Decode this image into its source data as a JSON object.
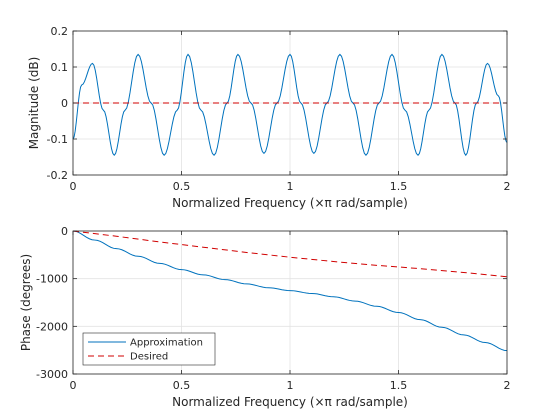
{
  "chart_data": [
    {
      "type": "line",
      "xlabel": "Normalized Frequency  (×π rad/sample)",
      "ylabel": "Magnitude (dB)",
      "xlim": [
        0,
        2
      ],
      "ylim": [
        -0.2,
        0.2
      ],
      "xticks": [
        "0",
        "0.5",
        "1",
        "1.5",
        "2"
      ],
      "yticks": [
        "0.2",
        "0.1",
        "0",
        "-0.1",
        "-0.2"
      ],
      "grid": true,
      "series": [
        {
          "color": "#0072BD",
          "style": "solid",
          "x": [
            0,
            0.04,
            0.09,
            0.14,
            0.19,
            0.24,
            0.3,
            0.36,
            0.42,
            0.48,
            0.53,
            0.59,
            0.65,
            0.71,
            0.76,
            0.82,
            0.88,
            0.94,
            1.0,
            1.05,
            1.11,
            1.17,
            1.23,
            1.29,
            1.35,
            1.41,
            1.47,
            1.53,
            1.59,
            1.64,
            1.7,
            1.76,
            1.81,
            1.86,
            1.91,
            1.96,
            2.0
          ],
          "y": [
            -0.1,
            0.05,
            0.11,
            -0.02,
            -0.145,
            -0.02,
            0.135,
            0.0,
            -0.145,
            -0.02,
            0.135,
            -0.02,
            -0.145,
            0.0,
            0.135,
            0.0,
            -0.14,
            0.0,
            0.135,
            0.0,
            -0.14,
            0.0,
            0.135,
            0.0,
            -0.145,
            0.0,
            0.135,
            -0.02,
            -0.145,
            -0.02,
            0.135,
            0.0,
            -0.145,
            0.0,
            0.11,
            0.02,
            -0.11
          ]
        },
        {
          "color": "#D00000",
          "style": "dashed",
          "x": [
            0,
            2
          ],
          "y": [
            0,
            0
          ]
        }
      ]
    },
    {
      "type": "line",
      "xlabel": "Normalized Frequency  (×π rad/sample)",
      "ylabel": "Phase (degrees)",
      "xlim": [
        0,
        2
      ],
      "ylim": [
        -3000,
        0
      ],
      "xticks": [
        "0",
        "0.5",
        "1",
        "1.5",
        "2"
      ],
      "yticks": [
        "0",
        "-1000",
        "-2000",
        "-3000"
      ],
      "grid": true,
      "legend_position": "bottom-left",
      "series": [
        {
          "name": "Approximation",
          "color": "#0072BD",
          "style": "solid",
          "x": [
            0,
            0.1,
            0.2,
            0.3,
            0.4,
            0.5,
            0.6,
            0.7,
            0.8,
            0.9,
            1.0,
            1.1,
            1.2,
            1.3,
            1.4,
            1.5,
            1.6,
            1.7,
            1.8,
            1.9,
            2.0
          ],
          "y": [
            0,
            -190,
            -370,
            -530,
            -680,
            -810,
            -920,
            -1020,
            -1110,
            -1190,
            -1250,
            -1310,
            -1380,
            -1470,
            -1580,
            -1710,
            -1860,
            -2020,
            -2180,
            -2340,
            -2510
          ]
        },
        {
          "name": "Desired",
          "color": "#D00000",
          "style": "dashed",
          "x": [
            0,
            0.2,
            0.4,
            0.6,
            0.8,
            1.0,
            1.2,
            1.4,
            1.6,
            1.8,
            2.0
          ],
          "y": [
            0,
            -110,
            -230,
            -340,
            -450,
            -550,
            -640,
            -720,
            -790,
            -870,
            -960
          ]
        }
      ]
    }
  ]
}
